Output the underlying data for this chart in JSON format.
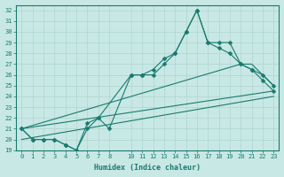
{
  "xlabel": "Humidex (Indice chaleur)",
  "bg_color": "#c8e8e5",
  "line_color": "#1a7a6e",
  "grid_color": "#b0d4d0",
  "xlim": [
    -0.5,
    23.5
  ],
  "ylim": [
    19,
    32.5
  ],
  "xticks": [
    0,
    1,
    2,
    3,
    4,
    5,
    6,
    7,
    8,
    10,
    11,
    12,
    13,
    14,
    15,
    16,
    17,
    18,
    19,
    20,
    21,
    22,
    23
  ],
  "yticks": [
    19,
    20,
    21,
    22,
    23,
    24,
    25,
    26,
    27,
    28,
    29,
    30,
    31,
    32
  ],
  "line1_x": [
    0,
    1,
    2,
    3,
    4,
    5,
    6,
    7,
    8,
    10,
    11,
    12,
    13,
    14,
    15,
    16,
    17,
    18,
    19,
    20,
    21,
    22,
    23
  ],
  "line1_y": [
    21,
    20,
    20,
    20,
    19.5,
    19,
    21.5,
    22,
    21,
    26,
    26,
    26.5,
    27.5,
    28,
    30,
    32,
    29,
    29,
    29,
    27,
    26.5,
    26,
    25
  ],
  "line2_x": [
    0,
    1,
    2,
    3,
    4,
    5,
    6,
    7,
    10,
    11,
    12,
    13,
    14,
    15,
    16,
    17,
    18,
    19,
    20,
    21,
    22,
    23
  ],
  "line2_y": [
    21,
    20,
    20,
    20,
    19.5,
    19,
    21,
    22,
    26,
    26,
    26,
    27,
    28,
    30,
    32,
    29,
    28.5,
    28,
    27,
    26.5,
    25.5,
    24.5
  ],
  "line3_x": [
    0,
    20,
    21,
    22,
    23
  ],
  "line3_y": [
    21,
    27,
    27,
    26,
    25
  ],
  "line4_x": [
    0,
    23
  ],
  "line4_y": [
    21,
    24.5
  ],
  "line5_x": [
    0,
    23
  ],
  "line5_y": [
    20,
    24
  ]
}
